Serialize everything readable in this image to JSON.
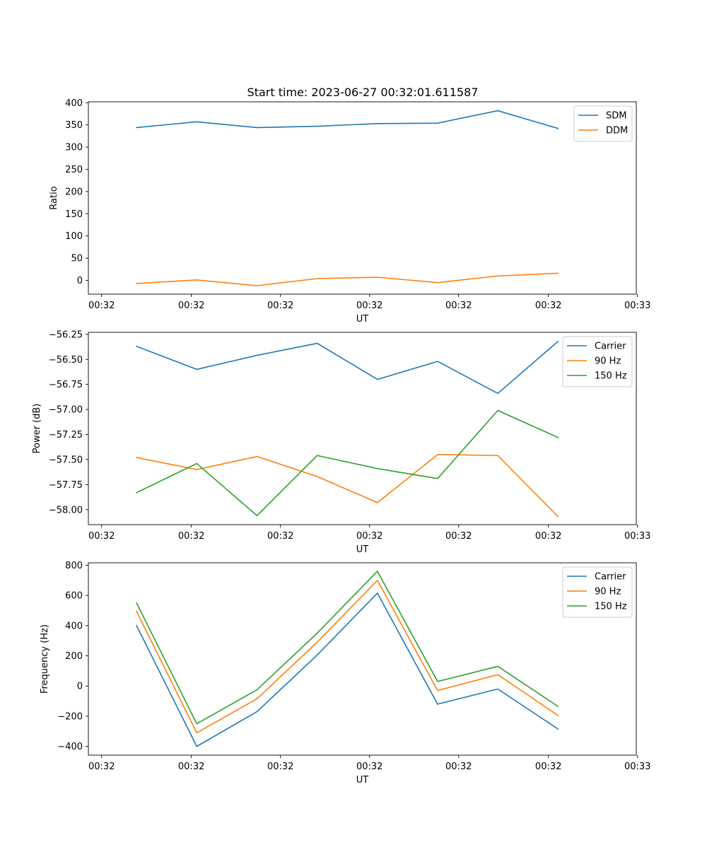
{
  "figure": {
    "title": "Start time: 2023-06-27 00:32:01.611587"
  },
  "colors": {
    "blue": "#1f77b4",
    "orange": "#ff7f0e",
    "green": "#2ca02c"
  },
  "chart_data": [
    {
      "type": "line",
      "title": "Start time: 2023-06-27 00:32:01.611587",
      "xlabel": "UT",
      "ylabel": "Ratio",
      "xtick_labels": [
        "00:32",
        "00:32",
        "00:32",
        "00:32",
        "00:32",
        "00:32",
        "00:33"
      ],
      "yticks": [
        0,
        50,
        100,
        150,
        200,
        250,
        300,
        350,
        400
      ],
      "ytick_labels": [
        "0",
        "50",
        "100",
        "150",
        "200",
        "250",
        "300",
        "350",
        "400"
      ],
      "ylim": [
        -31,
        402
      ],
      "x": [
        1,
        2,
        3,
        4,
        5,
        6,
        7,
        8
      ],
      "xlim": [
        0.2,
        9.3
      ],
      "xticks": [
        0.42,
        1.91,
        3.39,
        4.87,
        6.35,
        7.84,
        9.32
      ],
      "legend": "top-right",
      "grid": false,
      "series": [
        {
          "name": "SDM",
          "color": "#1f77b4",
          "values": [
            344,
            357,
            344,
            347,
            353,
            354,
            382,
            342
          ]
        },
        {
          "name": "DDM",
          "color": "#ff7f0e",
          "values": [
            -7,
            1,
            -12,
            4,
            7,
            -5,
            10,
            16
          ]
        }
      ]
    },
    {
      "type": "line",
      "title": "",
      "xlabel": "UT",
      "ylabel": "Power (dB)",
      "xtick_labels": [
        "00:32",
        "00:32",
        "00:32",
        "00:32",
        "00:32",
        "00:32",
        "00:33"
      ],
      "yticks": [
        -58.0,
        -57.75,
        -57.5,
        -57.25,
        -57.0,
        -56.75,
        -56.5,
        -56.25
      ],
      "ytick_labels": [
        "−58.00",
        "−57.75",
        "−57.50",
        "−57.25",
        "−57.00",
        "−56.75",
        "−56.50",
        "−56.25"
      ],
      "ylim": [
        -58.15,
        -56.23
      ],
      "x": [
        1,
        2,
        3,
        4,
        5,
        6,
        7,
        8
      ],
      "xlim": [
        0.2,
        9.3
      ],
      "xticks": [
        0.42,
        1.91,
        3.39,
        4.87,
        6.35,
        7.84,
        9.32
      ],
      "legend": "top-right",
      "grid": false,
      "series": [
        {
          "name": "Carrier",
          "color": "#1f77b4",
          "values": [
            -56.37,
            -56.6,
            -56.46,
            -56.34,
            -56.7,
            -56.52,
            -56.84,
            -56.32
          ]
        },
        {
          "name": "90 Hz",
          "color": "#ff7f0e",
          "values": [
            -57.48,
            -57.6,
            -57.47,
            -57.67,
            -57.93,
            -57.45,
            -57.46,
            -58.07
          ]
        },
        {
          "name": "150 Hz",
          "color": "#2ca02c",
          "values": [
            -57.83,
            -57.54,
            -58.06,
            -57.46,
            -57.59,
            -57.69,
            -57.01,
            -57.28
          ]
        }
      ]
    },
    {
      "type": "line",
      "title": "",
      "xlabel": "UT",
      "ylabel": "Frequency (Hz)",
      "xtick_labels": [
        "00:32",
        "00:32",
        "00:32",
        "00:32",
        "00:32",
        "00:32",
        "00:33"
      ],
      "yticks": [
        -400,
        -200,
        0,
        200,
        400,
        600,
        800
      ],
      "ytick_labels": [
        "−400",
        "−200",
        "0",
        "200",
        "400",
        "600",
        "800"
      ],
      "ylim": [
        -458,
        816
      ],
      "x": [
        1,
        2,
        3,
        4,
        5,
        6,
        7,
        8
      ],
      "xlim": [
        0.2,
        9.3
      ],
      "xticks": [
        0.42,
        1.91,
        3.39,
        4.87,
        6.35,
        7.84,
        9.32
      ],
      "legend": "top-right",
      "grid": false,
      "series": [
        {
          "name": "Carrier",
          "color": "#1f77b4",
          "values": [
            400,
            -400,
            -170,
            205,
            615,
            -120,
            -20,
            -285
          ]
        },
        {
          "name": "90 Hz",
          "color": "#ff7f0e",
          "values": [
            495,
            -310,
            -85,
            290,
            700,
            -30,
            75,
            -195
          ]
        },
        {
          "name": "150 Hz",
          "color": "#2ca02c",
          "values": [
            550,
            -250,
            -25,
            350,
            760,
            30,
            130,
            -135
          ]
        }
      ]
    }
  ]
}
